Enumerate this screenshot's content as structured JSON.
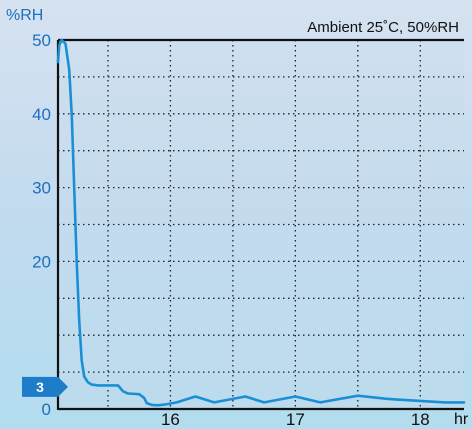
{
  "chart_data": {
    "type": "line",
    "ylabel": "%RH",
    "xlabel": "hr",
    "annotation": "Ambient 25˚C, 50%RH",
    "xlim": [
      15.1,
      18.35
    ],
    "ylim": [
      0,
      50
    ],
    "x_ticks": [
      16,
      17,
      18
    ],
    "y_ticks": [
      0,
      20,
      30,
      40,
      50
    ],
    "grid": true,
    "marker": {
      "label": "3",
      "value": 3
    },
    "colors": {
      "line": "#1b8fd6",
      "axis": "#111111",
      "tick_label_y": "#1e6fc0",
      "marker": "#1e7dc8"
    },
    "series": [
      {
        "x": [
          15.1,
          15.11,
          15.13,
          15.16,
          15.19,
          15.21,
          15.23,
          15.25,
          15.27,
          15.29,
          15.31,
          15.34,
          15.37,
          15.42,
          15.5,
          15.58,
          15.62,
          15.66,
          15.75,
          15.79,
          15.81,
          15.85,
          15.9,
          15.95,
          16.05,
          16.2,
          16.35,
          16.6,
          16.75,
          17.0,
          17.2,
          17.5,
          17.72,
          17.8,
          18.0,
          18.2,
          18.35
        ],
        "y": [
          47,
          49.3,
          50,
          49.5,
          46,
          40,
          30,
          20,
          12,
          6.6,
          4.4,
          3.6,
          3.3,
          3.2,
          3.2,
          3.2,
          2.4,
          2.1,
          2.0,
          1.5,
          0.8,
          0.55,
          0.5,
          0.6,
          0.9,
          1.7,
          0.9,
          1.7,
          0.9,
          1.7,
          0.9,
          1.8,
          1.4,
          1.3,
          1.1,
          0.9,
          0.9
        ]
      }
    ]
  }
}
